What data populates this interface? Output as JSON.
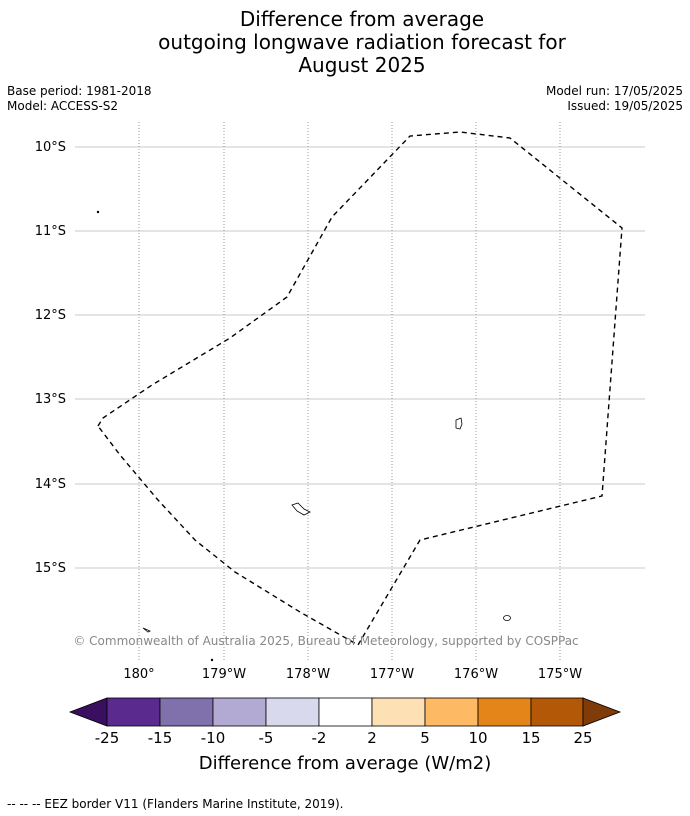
{
  "title": {
    "line1": "Difference from average",
    "line2": "outgoing longwave radiation forecast for",
    "line3": "August 2025"
  },
  "meta_left": {
    "base_period": "Base period: 1981-2018",
    "model": "Model: ACCESS-S2"
  },
  "meta_right": {
    "model_run": "Model run: 17/05/2025",
    "issued": "Issued: 19/05/2025"
  },
  "map": {
    "lat_ticks": [
      "10°S",
      "11°S",
      "12°S",
      "13°S",
      "14°S",
      "15°S"
    ],
    "lon_ticks": [
      "180°",
      "179°W",
      "178°W",
      "177°W",
      "176°W",
      "175°W"
    ],
    "copyright": "© Commonwealth of Australia 2025, Bureau of Meteorology, supported by COSPPac",
    "eez_border_color": "#000000"
  },
  "colorbar": {
    "title": "Difference from average (W/m2)",
    "tick_labels": [
      "-25",
      "-15",
      "-10",
      "-5",
      "-2",
      "2",
      "5",
      "10",
      "15",
      "25"
    ],
    "colors": [
      "#3b0f5f",
      "#5a2a8e",
      "#8070ac",
      "#b3aad4",
      "#d8d9ec",
      "#ffffff",
      "#fee0b5",
      "#fdb963",
      "#e38519",
      "#b35807",
      "#7f3b08"
    ]
  },
  "footer": {
    "legend": "--  --  -- EEZ border V11 (Flanders Marine Institute, 2019)."
  }
}
